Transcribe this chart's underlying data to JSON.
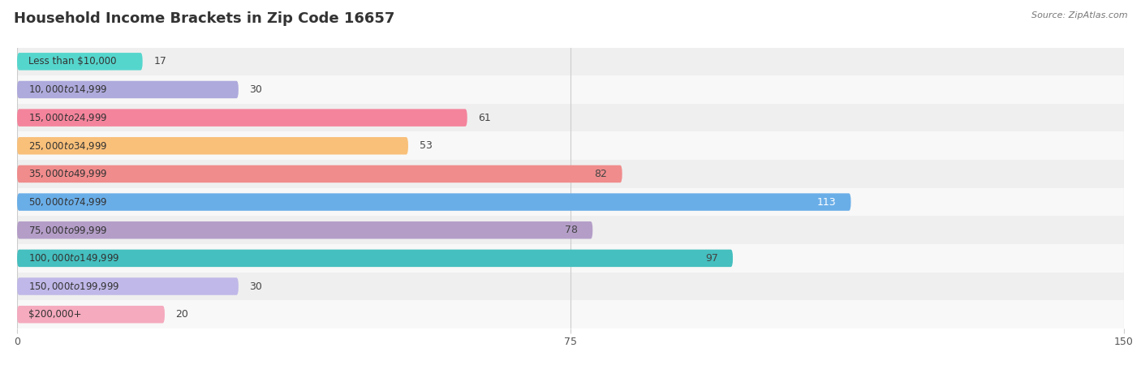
{
  "title": "Household Income Brackets in Zip Code 16657",
  "source": "Source: ZipAtlas.com",
  "categories": [
    "Less than $10,000",
    "$10,000 to $14,999",
    "$15,000 to $24,999",
    "$25,000 to $34,999",
    "$35,000 to $49,999",
    "$50,000 to $74,999",
    "$75,000 to $99,999",
    "$100,000 to $149,999",
    "$150,000 to $199,999",
    "$200,000+"
  ],
  "values": [
    17,
    30,
    61,
    53,
    82,
    113,
    78,
    97,
    30,
    20
  ],
  "bar_colors": [
    "#55D6CD",
    "#AEAADC",
    "#F4849C",
    "#F9C07A",
    "#F08C8C",
    "#6AAEE8",
    "#B49EC8",
    "#45BFBF",
    "#C0B8E8",
    "#F5AABE"
  ],
  "row_bg_even": "#efefef",
  "row_bg_odd": "#f8f8f8",
  "xlim": [
    0,
    150
  ],
  "xticks": [
    0,
    75,
    150
  ],
  "title_fontsize": 13,
  "label_fontsize": 8.5,
  "value_fontsize": 9,
  "bar_height": 0.62,
  "figsize": [
    14.06,
    4.5
  ]
}
